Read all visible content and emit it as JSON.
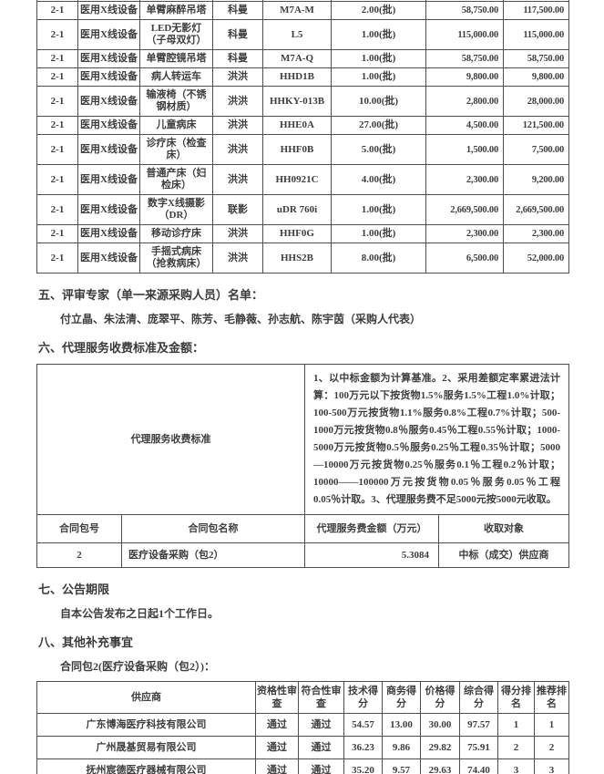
{
  "colors": {
    "background": "#ffffff",
    "text": "#3e3e3e",
    "border": "#4f4f4f"
  },
  "items_table": {
    "rows": [
      [
        "2-1",
        "医用X线设备",
        "单臂麻醉吊塔",
        "科曼",
        "M7A-M",
        "2.00(批)",
        "58,750.00",
        "117,500.00"
      ],
      [
        "2-1",
        "医用X线设备",
        "LED无影灯（子母双灯）",
        "科曼",
        "L5",
        "1.00(批)",
        "115,000.00",
        "115,000.00"
      ],
      [
        "2-1",
        "医用X线设备",
        "单臂腔镜吊塔",
        "科曼",
        "M7A-Q",
        "1.00(批)",
        "58,750.00",
        "58,750.00"
      ],
      [
        "2-1",
        "医用X线设备",
        "病人转运车",
        "洪洪",
        "HHD1B",
        "1.00(批)",
        "9,800.00",
        "9,800.00"
      ],
      [
        "2-1",
        "医用X线设备",
        "输液椅（不锈钢材质）",
        "洪洪",
        "HHKY-013B",
        "10.00(批)",
        "2,800.00",
        "28,000.00"
      ],
      [
        "2-1",
        "医用X线设备",
        "儿童病床",
        "洪洪",
        "HHE0A",
        "27.00(批)",
        "4,500.00",
        "121,500.00"
      ],
      [
        "2-1",
        "医用X线设备",
        "诊疗床（检查床）",
        "洪洪",
        "HHF0B",
        "5.00(批)",
        "1,500.00",
        "7,500.00"
      ],
      [
        "2-1",
        "医用X线设备",
        "普通产床（妇检床）",
        "洪洪",
        "HH0921C",
        "4.00(批)",
        "2,300.00",
        "9,200.00"
      ],
      [
        "2-1",
        "医用X线设备",
        "数字X线摄影（DR）",
        "联影",
        "uDR 760i",
        "1.00(批)",
        "2,669,500.00",
        "2,669,500.00"
      ],
      [
        "2-1",
        "医用X线设备",
        "移动诊疗床",
        "洪洪",
        "HHF0G",
        "1.00(批)",
        "2,300.00",
        "2,300.00"
      ],
      [
        "2-1",
        "医用X线设备",
        "手摇式病床（抢救病床）",
        "洪洪",
        "HHS2B",
        "8.00(批)",
        "6,500.00",
        "52,000.00"
      ]
    ]
  },
  "section_experts": {
    "heading": "五、评审专家（单一来源采购人员）名单：",
    "names": "付立晶、朱法清、庞翠平、陈芳、毛静薇、孙志航、陈宇茵（采购人代表）"
  },
  "section_agency_fee": {
    "heading": "六、代理服务收费标准及金额：",
    "standard_label": "代理服务收费标准",
    "standard_text": "1、以中标金额为计算基准。2、采用差额定率累进法计算：100万元以下按货物1.5%服务1.5%工程1.0%计取；100-500万元按货物1.1%服务0.8%工程0.7%计取；500-1000万元按货物0.8％服务0.45％工程0.55％计取；1000-5000万元按货物0.5％服务0.25％工程0.35％计取；5000—10000万元按货物0.25％服务0.1％工程0.2％计取；10000——100000万元按货物0.05％服务0.05％工程0.05％计取。3、代理服务费不足5000元按5000元收取。",
    "headers": [
      "合同包号",
      "合同包名称",
      "代理服务费金额（万元）",
      "收取对象"
    ],
    "row": [
      "2",
      "医疗设备采购（包2）",
      "5.3084",
      "中标（成交）供应商"
    ]
  },
  "section_notice_period": {
    "heading": "七、公告期限",
    "body": "自本公告发布之日起1个工作日。"
  },
  "section_other": {
    "heading": "八、其他补充事宜",
    "subtitle": "合同包2(医疗设备采购（包2）)："
  },
  "score_table": {
    "headers": [
      "供应商",
      "资格性审查",
      "符合性审查",
      "技术得分",
      "商务得分",
      "价格得分",
      "综合得分",
      "得分排名",
      "推荐排名"
    ],
    "rows": [
      [
        "广东博海医疗科技有限公司",
        "通过",
        "通过",
        "54.57",
        "13.00",
        "30.00",
        "97.57",
        "1",
        "1"
      ],
      [
        "广州晟基贸易有限公司",
        "通过",
        "通过",
        "36.23",
        "9.86",
        "29.82",
        "75.91",
        "2",
        "2"
      ],
      [
        "抚州宸德医疗器械有限公司",
        "通过",
        "通过",
        "35.20",
        "9.57",
        "29.63",
        "74.40",
        "3",
        "3"
      ]
    ]
  }
}
